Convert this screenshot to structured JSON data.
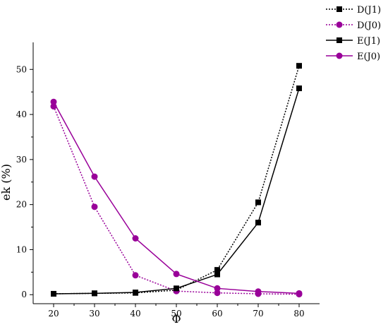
{
  "chart_data": {
    "type": "line",
    "title": "",
    "xlabel": "Φ",
    "ylabel": "ek (%)",
    "x": [
      20,
      30,
      40,
      50,
      60,
      70,
      80
    ],
    "xlim": [
      15,
      85
    ],
    "ylim": [
      -2,
      56
    ],
    "xticks": [
      20,
      30,
      40,
      50,
      60,
      70,
      80
    ],
    "yticks": [
      0,
      10,
      20,
      30,
      40,
      50
    ],
    "grid": false,
    "legend_position": "top-right, outside plot",
    "series": [
      {
        "name": "D(J1)",
        "color": "#000000",
        "line": "dotted",
        "marker": "square",
        "values": [
          0.2,
          0.3,
          0.4,
          1.0,
          5.5,
          20.5,
          50.8
        ]
      },
      {
        "name": "D(J0)",
        "color": "#990099",
        "line": "dotted",
        "marker": "circle",
        "values": [
          41.8,
          19.5,
          4.3,
          0.8,
          0.4,
          0.2,
          0.1
        ]
      },
      {
        "name": "E(J1)",
        "color": "#000000",
        "line": "solid",
        "marker": "square",
        "values": [
          0.2,
          0.3,
          0.5,
          1.4,
          4.5,
          16.0,
          45.8
        ]
      },
      {
        "name": "E(J0)",
        "color": "#990099",
        "line": "solid",
        "marker": "circle",
        "values": [
          42.8,
          26.2,
          12.5,
          4.6,
          1.4,
          0.7,
          0.3
        ]
      }
    ]
  }
}
